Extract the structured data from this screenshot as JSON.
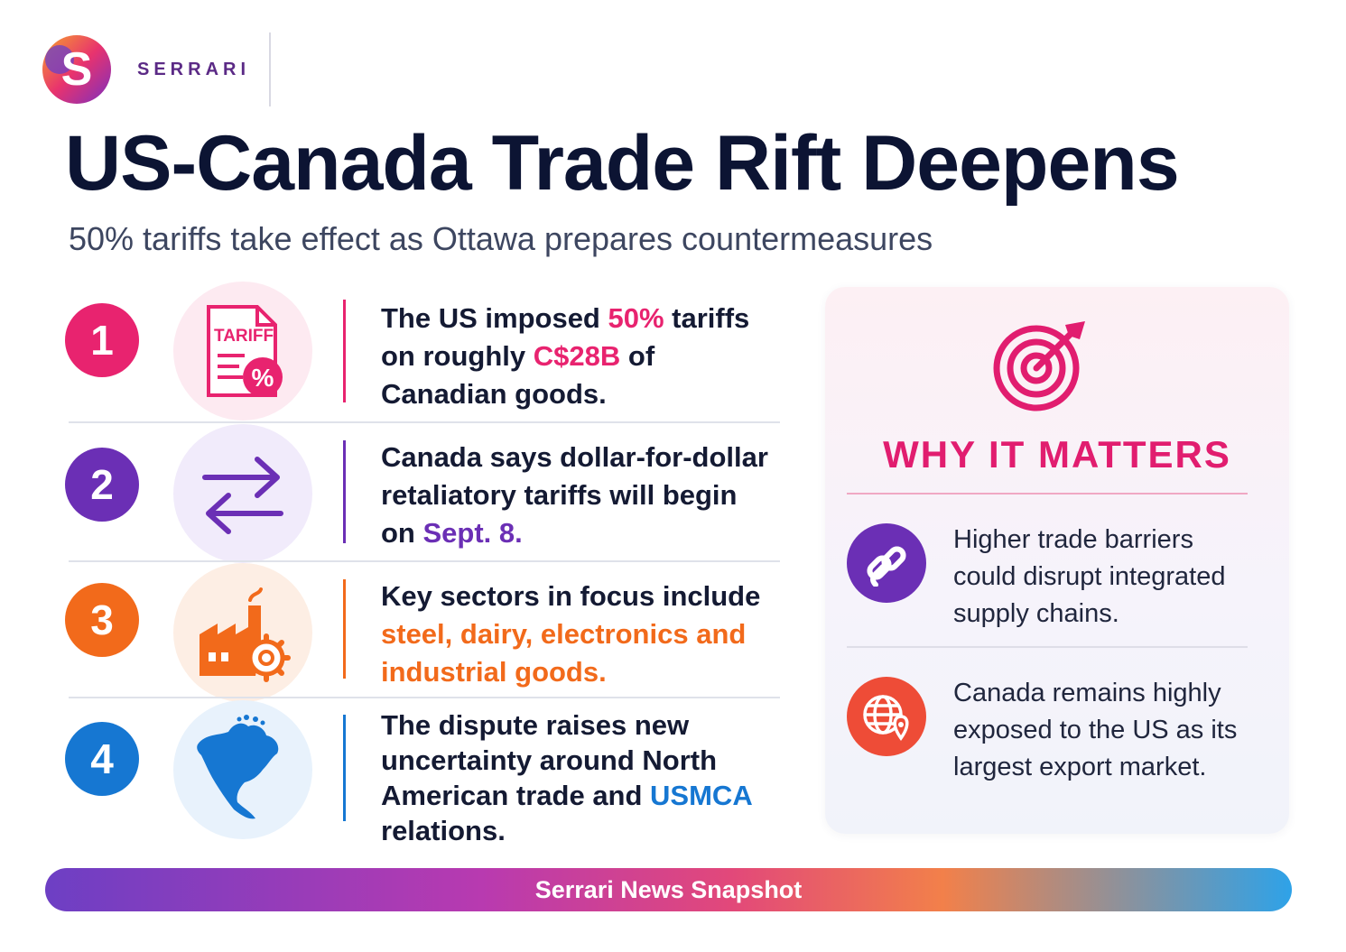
{
  "brand": {
    "name": "SERRARI"
  },
  "header": {
    "title": "US-Canada Trade Rift Deepens",
    "subtitle": "50% tariffs take effect as Ottawa prepares countermeasures"
  },
  "colors": {
    "pink": "#e11d6f",
    "purple": "#6b2fb5",
    "orange": "#f26a1b",
    "blue": "#1677d2"
  },
  "items": [
    {
      "number": "1",
      "icon": "tariff-document-icon",
      "icon_label": "TARIFF",
      "icon_symbol": "%",
      "text_parts": [
        "The US imposed ",
        "50%",
        " tariffs on roughly ",
        "C$28B",
        " of Canadian goods."
      ]
    },
    {
      "number": "2",
      "icon": "exchange-arrows-icon",
      "text_parts": [
        "Canada says dollar-for-dollar retaliatory tariffs will begin on ",
        "Sept. 8."
      ]
    },
    {
      "number": "3",
      "icon": "factory-gear-icon",
      "text_parts": [
        "Key sectors in focus include ",
        "steel, dairy, electronics and industrial goods."
      ]
    },
    {
      "number": "4",
      "icon": "north-america-map-icon",
      "text_parts": [
        "The dispute raises new uncertainty around North American trade and ",
        "USMCA",
        " relations."
      ]
    }
  ],
  "why_it_matters": {
    "heading": "WHY IT MATTERS",
    "icon": "target-arrow-icon",
    "points": [
      {
        "icon": "chain-link-icon",
        "text": "Higher trade barriers could disrupt integrated supply chains."
      },
      {
        "icon": "globe-pin-icon",
        "text": "Canada remains highly exposed to the US as its largest export market."
      }
    ]
  },
  "footer": {
    "label": "Serrari News Snapshot"
  }
}
